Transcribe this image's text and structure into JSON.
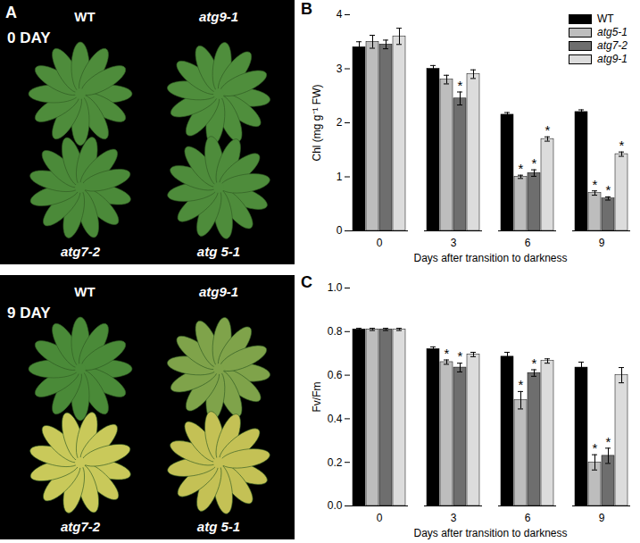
{
  "photos": {
    "panel": "A",
    "images": [
      {
        "label": "0 DAY",
        "plants": [
          "WT",
          "atg9-1",
          "atg7-2",
          "atg 5-1"
        ]
      },
      {
        "label": "9 DAY",
        "plants": [
          "WT",
          "atg9-1",
          "atg7-2",
          "atg 5-1"
        ]
      }
    ]
  },
  "chart_data": [
    {
      "panel": "B",
      "type": "bar",
      "x_label": "Days after transition to darkness",
      "y_label": "Chl (mg g⁻¹ FW)",
      "categories": [
        0,
        3,
        6,
        9
      ],
      "ylim": [
        0,
        4
      ],
      "yticks": [
        0,
        1,
        2,
        3,
        4
      ],
      "legend": "top-right",
      "significance_mark": "*",
      "series": [
        {
          "name": "WT",
          "color": "#000000",
          "values": [
            3.4,
            3.0,
            2.15,
            2.2
          ],
          "errors": [
            0.1,
            0.06,
            0.04,
            0.04
          ],
          "significant": [
            false,
            false,
            false,
            false
          ]
        },
        {
          "name": "atg5-1",
          "color": "#bdbdbd",
          "values": [
            3.5,
            2.8,
            1.0,
            0.7
          ],
          "errors": [
            0.12,
            0.08,
            0.03,
            0.04
          ],
          "significant": [
            false,
            false,
            true,
            true
          ]
        },
        {
          "name": "atg7-2",
          "color": "#6e6e6e",
          "values": [
            3.45,
            2.45,
            1.07,
            0.6
          ],
          "errors": [
            0.08,
            0.12,
            0.06,
            0.03
          ],
          "significant": [
            false,
            true,
            true,
            true
          ]
        },
        {
          "name": "atg9-1",
          "color": "#dcdcdc",
          "values": [
            3.6,
            2.9,
            1.7,
            1.42
          ],
          "errors": [
            0.15,
            0.08,
            0.04,
            0.04
          ],
          "significant": [
            false,
            false,
            true,
            true
          ]
        }
      ]
    },
    {
      "panel": "C",
      "type": "bar",
      "x_label": "Days after transition to darkness",
      "y_label": "Fv/Fm",
      "categories": [
        0,
        3,
        6,
        9
      ],
      "ylim": [
        0,
        1
      ],
      "yticks": [
        {
          "value": 0,
          "label": "0.0"
        },
        0.2,
        0.4,
        0.6,
        0.8,
        {
          "value": 1,
          "label": "1.0"
        }
      ],
      "significance_mark": "*",
      "series": [
        {
          "name": "WT",
          "color": "#000000",
          "values": [
            0.81,
            0.72,
            0.685,
            0.635
          ],
          "errors": [
            0.005,
            0.01,
            0.02,
            0.025
          ],
          "significant": [
            false,
            false,
            false,
            false
          ]
        },
        {
          "name": "atg5-1",
          "color": "#bdbdbd",
          "values": [
            0.81,
            0.66,
            0.485,
            0.2
          ],
          "errors": [
            0.005,
            0.01,
            0.04,
            0.035
          ],
          "significant": [
            false,
            true,
            true,
            true
          ]
        },
        {
          "name": "atg7-2",
          "color": "#6e6e6e",
          "values": [
            0.81,
            0.635,
            0.61,
            0.23
          ],
          "errors": [
            0.005,
            0.02,
            0.015,
            0.035
          ],
          "significant": [
            false,
            true,
            true,
            true
          ]
        },
        {
          "name": "atg9-1",
          "color": "#dcdcdc",
          "values": [
            0.81,
            0.695,
            0.665,
            0.6
          ],
          "errors": [
            0.005,
            0.01,
            0.01,
            0.035
          ],
          "significant": [
            false,
            false,
            false,
            false
          ]
        }
      ]
    }
  ]
}
